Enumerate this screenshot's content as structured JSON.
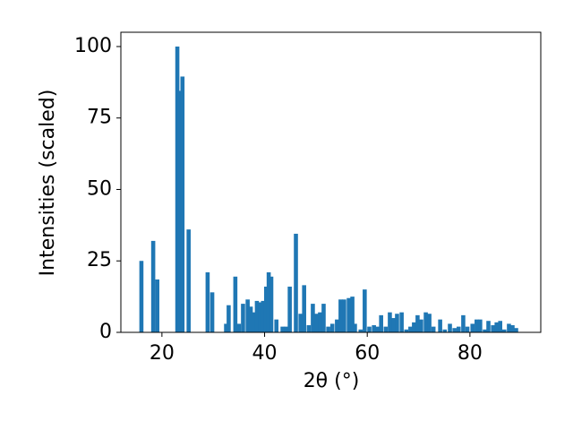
{
  "chart_data": {
    "type": "bar",
    "xlabel": "2θ (°)",
    "ylabel": "Intensities (scaled)",
    "color": "#1f77b4",
    "x": [
      16.0,
      18.3,
      19.1,
      23.0,
      23.5,
      24.0,
      25.2,
      28.9,
      29.8,
      32.5,
      33.0,
      34.3,
      35.0,
      35.8,
      36.7,
      37.3,
      37.8,
      38.5,
      39.2,
      39.7,
      40.3,
      40.8,
      41.3,
      42.3,
      43.5,
      44.2,
      44.9,
      46.1,
      47.0,
      47.7,
      48.6,
      49.4,
      50.1,
      50.8,
      51.5,
      52.4,
      53.2,
      54.1,
      54.8,
      55.5,
      56.4,
      57.1,
      57.6,
      58.7,
      59.5,
      60.4,
      61.3,
      62.0,
      62.7,
      63.6,
      64.4,
      65.1,
      65.8,
      66.7,
      67.6,
      68.4,
      69.1,
      69.8,
      70.5,
      71.4,
      72.1,
      72.9,
      74.2,
      75.1,
      76.1,
      77.0,
      77.8,
      78.7,
      79.5,
      80.5,
      81.3,
      82.0,
      82.9,
      83.6,
      84.5,
      85.2,
      85.9,
      86.7,
      87.6,
      88.3,
      89.0
    ],
    "values": [
      25,
      32,
      18.5,
      100,
      84.5,
      89.5,
      36,
      21,
      14,
      3,
      9.5,
      19.5,
      3,
      10,
      11.5,
      9,
      7,
      11,
      10.5,
      11,
      16,
      21,
      19.5,
      4.5,
      2,
      2,
      16,
      34.5,
      6.5,
      16.5,
      2.5,
      10,
      6.5,
      7,
      10,
      2,
      3,
      4.5,
      11.5,
      11.5,
      12,
      12.5,
      3,
      1,
      15,
      2,
      2.5,
      2,
      6,
      2,
      7,
      5,
      6.5,
      7,
      1,
      2,
      3.5,
      6,
      4.5,
      7,
      6.5,
      2,
      4.5,
      1,
      3,
      1.5,
      2,
      6,
      2,
      3,
      4.5,
      4.5,
      1,
      4,
      2.5,
      3.5,
      4,
      1,
      3,
      2.5,
      1.5
    ],
    "xlim": [
      12,
      93.8
    ],
    "ylim": [
      0,
      105
    ],
    "xticks": [
      20,
      40,
      60,
      80
    ],
    "yticks": [
      0,
      25,
      50,
      75,
      100
    ]
  }
}
